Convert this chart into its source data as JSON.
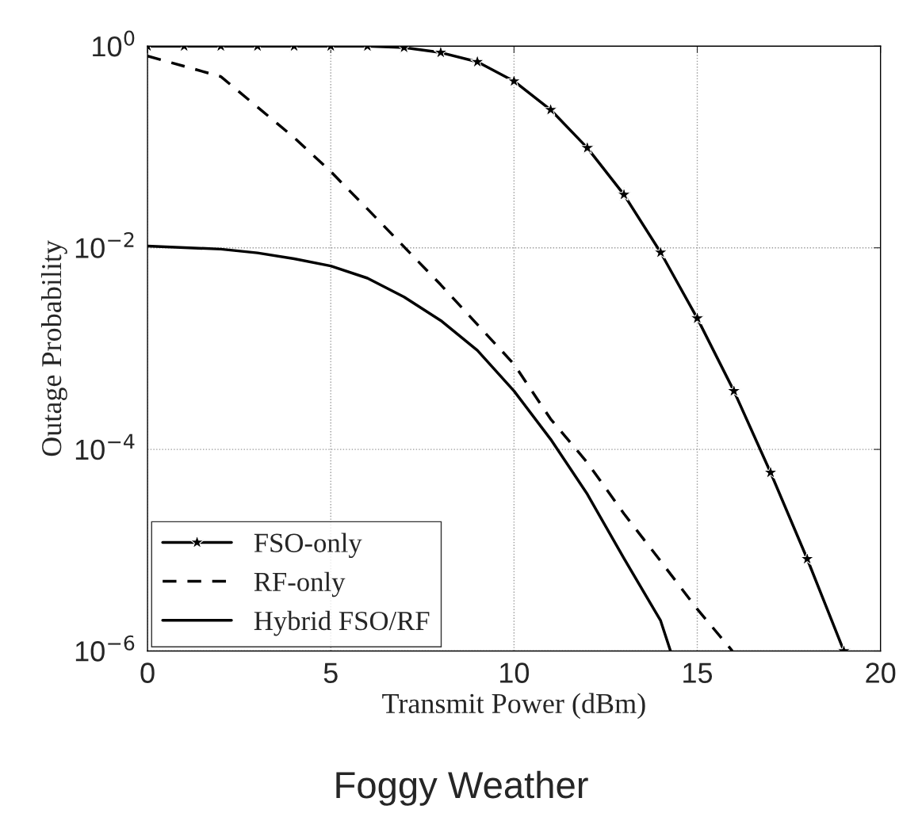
{
  "chart_data": {
    "type": "line",
    "title": "Foggy Weather",
    "xlabel": "Transmit Power (dBm)",
    "ylabel": "Outage Probability",
    "log": "y",
    "grid": true,
    "legend": "bottom left",
    "xlim": [
      0,
      20
    ],
    "xticks": [
      0,
      5,
      10,
      15,
      20
    ],
    "ylim": [
      1e-06,
      1
    ],
    "yticks": [
      {
        "value": 1e-06,
        "label": "10$^{−6}$"
      },
      {
        "value": 0.0001,
        "label": "10$^{−4}$"
      },
      {
        "value": 0.01,
        "label": "10$^{−2}$"
      },
      {
        "value": 1,
        "label": "10$^{0}$"
      }
    ],
    "series": [
      {
        "name": "FSO-only",
        "color": "#000000",
        "marker": "star",
        "line_style": "solid",
        "x": [
          0,
          1,
          2,
          3,
          4,
          5,
          6,
          7,
          8,
          9,
          10,
          11,
          12,
          13,
          14,
          15,
          16,
          17,
          18,
          19
        ],
        "values": [
          1,
          1,
          1,
          1,
          1,
          1,
          1,
          0.97,
          0.865,
          0.7,
          0.45,
          0.234,
          0.098,
          0.0337,
          0.009,
          0.002,
          0.00038,
          5.9e-05,
          8.2e-06,
          1e-06
        ]
      },
      {
        "name": "RF-only",
        "color": "#000000",
        "marker": "none",
        "line_style": "dashed",
        "x": [
          0,
          2,
          4,
          5,
          6,
          8,
          10,
          11,
          12,
          13,
          14,
          15,
          15.96
        ],
        "values": [
          0.8,
          0.5,
          0.124,
          0.057,
          0.0243,
          0.0043,
          0.0007,
          0.0002,
          7.4e-05,
          2.3e-05,
          7.8e-06,
          2.6e-06,
          1e-06
        ]
      },
      {
        "name": "Hybrid FSO/RF",
        "color": "#000000",
        "marker": "none",
        "line_style": "solid",
        "x": [
          0,
          2,
          3,
          4,
          5,
          6,
          7,
          8,
          9,
          10,
          11,
          12,
          13,
          14,
          14.27
        ],
        "values": [
          0.0104,
          0.0097,
          0.0089,
          0.0078,
          0.0066,
          0.005,
          0.00325,
          0.0019,
          0.00096,
          0.00038,
          0.000126,
          3.6e-05,
          8.3e-06,
          2e-06,
          1e-06
        ]
      }
    ]
  }
}
